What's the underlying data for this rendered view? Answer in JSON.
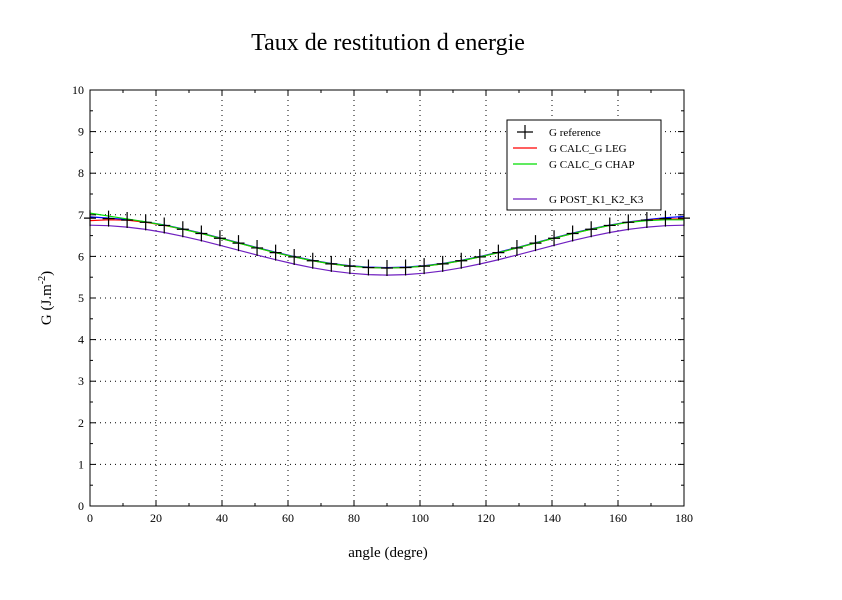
{
  "chart_data": {
    "type": "line",
    "title": "Taux de restitution d energie",
    "xlabel": "angle (degre)",
    "ylabel": "G (J.m",
    "ylabel_sup": "-2",
    "ylabel_end": ")",
    "xlim": [
      0,
      180
    ],
    "ylim": [
      0,
      10
    ],
    "xticks": [
      0,
      20,
      40,
      60,
      80,
      100,
      120,
      140,
      160,
      180
    ],
    "yticks": [
      0,
      1,
      2,
      3,
      4,
      5,
      6,
      7,
      8,
      9,
      10
    ],
    "grid": true,
    "legend_position": "top-right",
    "x": [
      0,
      5.625,
      11.25,
      16.875,
      22.5,
      28.125,
      33.75,
      39.375,
      45,
      50.625,
      56.25,
      61.875,
      67.5,
      73.125,
      78.75,
      84.375,
      90,
      95.625,
      101.25,
      106.875,
      112.5,
      118.125,
      123.75,
      129.375,
      135,
      140.625,
      146.25,
      151.875,
      157.5,
      163.125,
      168.75,
      174.375,
      180
    ],
    "series": [
      {
        "name": "G reference",
        "color": "#000000",
        "style": "marker-plus",
        "values": [
          6.92,
          6.908,
          6.874,
          6.819,
          6.744,
          6.653,
          6.55,
          6.437,
          6.32,
          6.203,
          6.09,
          5.987,
          5.896,
          5.821,
          5.766,
          5.732,
          5.72,
          5.732,
          5.766,
          5.821,
          5.896,
          5.987,
          6.09,
          6.203,
          6.32,
          6.437,
          6.55,
          6.653,
          6.744,
          6.819,
          6.874,
          6.908,
          6.92
        ]
      },
      {
        "name": "G CALC_G LEG",
        "color": "#ff0000",
        "style": "line",
        "values": [
          6.86,
          6.88,
          6.87,
          6.82,
          6.745,
          6.655,
          6.55,
          6.437,
          6.32,
          6.203,
          6.09,
          5.987,
          5.896,
          5.821,
          5.766,
          5.732,
          5.72,
          5.732,
          5.766,
          5.821,
          5.896,
          5.987,
          6.09,
          6.203,
          6.32,
          6.437,
          6.55,
          6.653,
          6.744,
          6.819,
          6.874,
          6.9,
          6.9
        ]
      },
      {
        "name": "G CALC_G CHAP",
        "color": "#00dd00",
        "style": "line",
        "values": [
          7.04,
          6.97,
          6.9,
          6.83,
          6.75,
          6.655,
          6.55,
          6.437,
          6.32,
          6.203,
          6.09,
          5.987,
          5.896,
          5.821,
          5.766,
          5.732,
          5.72,
          5.732,
          5.766,
          5.821,
          5.896,
          5.987,
          6.09,
          6.203,
          6.32,
          6.437,
          6.55,
          6.653,
          6.744,
          6.819,
          6.86,
          6.88,
          6.88
        ]
      },
      {
        "name": "",
        "color": "#0000ff",
        "style": "line",
        "values": [
          6.95,
          6.92,
          6.885,
          6.83,
          6.755,
          6.663,
          6.56,
          6.447,
          6.33,
          6.213,
          6.1,
          5.997,
          5.906,
          5.831,
          5.776,
          5.742,
          5.73,
          5.742,
          5.776,
          5.831,
          5.906,
          5.997,
          6.1,
          6.213,
          6.33,
          6.447,
          6.56,
          6.663,
          6.754,
          6.829,
          6.884,
          6.93,
          6.96
        ]
      },
      {
        "name": "G POST_K1_K2_K3",
        "color": "#7020c0",
        "style": "line",
        "values": [
          6.75,
          6.738,
          6.704,
          6.649,
          6.574,
          6.483,
          6.38,
          6.267,
          6.15,
          6.033,
          5.92,
          5.817,
          5.726,
          5.651,
          5.596,
          5.562,
          5.55,
          5.562,
          5.596,
          5.651,
          5.726,
          5.817,
          5.92,
          6.033,
          6.15,
          6.267,
          6.38,
          6.483,
          6.574,
          6.649,
          6.704,
          6.738,
          6.75
        ]
      }
    ]
  }
}
